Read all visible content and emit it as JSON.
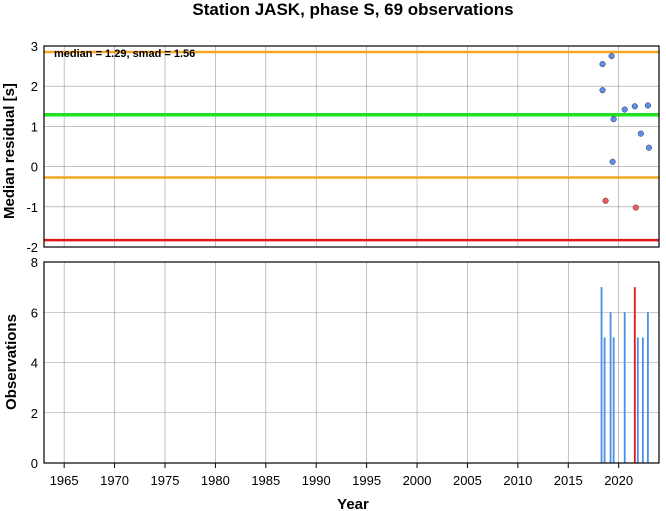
{
  "chart_data": [
    {
      "type": "scatter",
      "title": "Station JASK, phase S, 69 observations",
      "xlabel": "",
      "ylabel": "Median residual [s]",
      "xlim": [
        1963,
        2024
      ],
      "ylim": [
        -2,
        3
      ],
      "yticks": [
        "-2",
        "-1",
        "0",
        "1",
        "2",
        "3"
      ],
      "grid": true,
      "annotation": "median = 1.29, smad = 1.56",
      "reference_lines": [
        {
          "value": 2.85,
          "color": "#f5a623"
        },
        {
          "value": 1.29,
          "color": "#22e022"
        },
        {
          "value": -0.27,
          "color": "#f5a623"
        },
        {
          "value": -1.83,
          "color": "#e0181b"
        }
      ],
      "series": [
        {
          "color": "#5b8ff0",
          "x": [
            2018.4,
            2018.4,
            2019.3,
            2019.4,
            2019.5,
            2020.6,
            2021.6,
            2022.2,
            2022.9,
            2023.0
          ],
          "y": [
            2.55,
            1.9,
            2.75,
            0.12,
            1.18,
            1.42,
            1.5,
            0.82,
            1.52,
            0.47
          ]
        },
        {
          "color": "#f05a5a",
          "x": [
            2018.7,
            2021.7
          ],
          "y": [
            -0.85,
            -1.02
          ]
        }
      ]
    },
    {
      "type": "bar",
      "title": "",
      "xlabel": "Year",
      "ylabel": "Observations",
      "xlim": [
        1963,
        2024
      ],
      "ylim": [
        0,
        8
      ],
      "xticks": [
        "1965",
        "1970",
        "1975",
        "1980",
        "1985",
        "1990",
        "1995",
        "2000",
        "2005",
        "2010",
        "2015",
        "2020"
      ],
      "yticks": [
        "0",
        "2",
        "4",
        "6",
        "8"
      ],
      "grid": true,
      "bars": [
        {
          "x": 2018.3,
          "value": 7,
          "color": "#4a90e8"
        },
        {
          "x": 2018.6,
          "value": 5,
          "color": "#4a90e8"
        },
        {
          "x": 2019.2,
          "value": 6,
          "color": "#4a90e8"
        },
        {
          "x": 2019.5,
          "value": 5,
          "color": "#4a90e8"
        },
        {
          "x": 2020.6,
          "value": 6,
          "color": "#4a90e8"
        },
        {
          "x": 2021.6,
          "value": 7,
          "color": "#e0181b"
        },
        {
          "x": 2021.9,
          "value": 5,
          "color": "#4a90e8"
        },
        {
          "x": 2022.4,
          "value": 5,
          "color": "#4a90e8"
        },
        {
          "x": 2022.9,
          "value": 6,
          "color": "#4a90e8"
        }
      ]
    }
  ]
}
